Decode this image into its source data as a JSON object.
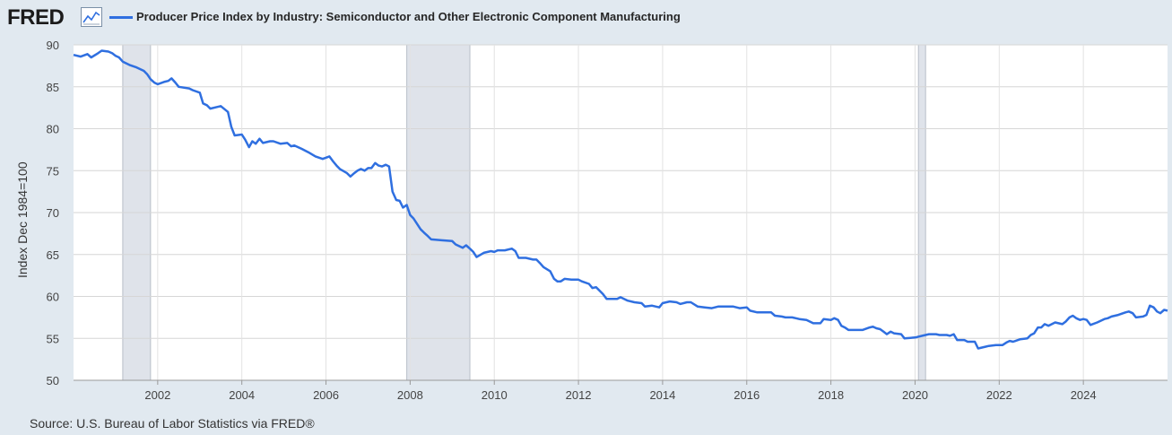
{
  "logo": {
    "text": "FRED",
    "icon": "line-chart-icon"
  },
  "legend": {
    "label": "Producer Price Index by Industry: Semiconductor and Other Electronic Component Manufacturing",
    "color": "#2f6fe0"
  },
  "source": "Source: U.S. Bureau of Labor Statistics via FRED®",
  "chart_data": {
    "type": "line",
    "title": "",
    "ylabel": "Index Dec 1984=100",
    "xlabel": "",
    "xlim": [
      2000.0,
      2025.25
    ],
    "ylim": [
      50,
      90
    ],
    "yticks": [
      50,
      55,
      60,
      65,
      70,
      75,
      80,
      85,
      90
    ],
    "xticks": [
      2002,
      2004,
      2006,
      2008,
      2010,
      2012,
      2014,
      2016,
      2018,
      2020,
      2022,
      2024
    ],
    "grid": true,
    "recessions": [
      [
        2001.17,
        2001.83
      ],
      [
        2007.92,
        2009.42
      ],
      [
        2020.08,
        2020.25
      ]
    ],
    "series": [
      {
        "values": [
          [
            2000.0,
            88.8
          ],
          [
            2000.17,
            88.6
          ],
          [
            2000.33,
            88.9
          ],
          [
            2000.42,
            88.5
          ],
          [
            2000.58,
            89.0
          ],
          [
            2000.67,
            89.3
          ],
          [
            2000.83,
            89.2
          ],
          [
            2000.92,
            89.0
          ],
          [
            2001.0,
            88.7
          ],
          [
            2001.08,
            88.5
          ],
          [
            2001.17,
            88.0
          ],
          [
            2001.33,
            87.6
          ],
          [
            2001.5,
            87.3
          ],
          [
            2001.67,
            86.9
          ],
          [
            2001.75,
            86.5
          ],
          [
            2001.83,
            85.9
          ],
          [
            2001.92,
            85.5
          ],
          [
            2002.0,
            85.3
          ],
          [
            2002.17,
            85.6
          ],
          [
            2002.25,
            85.7
          ],
          [
            2002.33,
            86.0
          ],
          [
            2002.42,
            85.5
          ],
          [
            2002.5,
            85.0
          ],
          [
            2002.75,
            84.8
          ],
          [
            2002.83,
            84.6
          ],
          [
            2003.0,
            84.3
          ],
          [
            2003.08,
            83.0
          ],
          [
            2003.17,
            82.8
          ],
          [
            2003.25,
            82.4
          ],
          [
            2003.42,
            82.6
          ],
          [
            2003.5,
            82.7
          ],
          [
            2003.67,
            82.0
          ],
          [
            2003.75,
            80.2
          ],
          [
            2003.83,
            79.2
          ],
          [
            2004.0,
            79.3
          ],
          [
            2004.08,
            78.7
          ],
          [
            2004.17,
            77.8
          ],
          [
            2004.25,
            78.5
          ],
          [
            2004.33,
            78.2
          ],
          [
            2004.42,
            78.8
          ],
          [
            2004.5,
            78.3
          ],
          [
            2004.67,
            78.5
          ],
          [
            2004.75,
            78.5
          ],
          [
            2004.92,
            78.2
          ],
          [
            2005.08,
            78.3
          ],
          [
            2005.17,
            77.9
          ],
          [
            2005.25,
            78.0
          ],
          [
            2005.42,
            77.6
          ],
          [
            2005.58,
            77.2
          ],
          [
            2005.75,
            76.7
          ],
          [
            2005.92,
            76.4
          ],
          [
            2006.08,
            76.7
          ],
          [
            2006.17,
            76.1
          ],
          [
            2006.25,
            75.6
          ],
          [
            2006.33,
            75.2
          ],
          [
            2006.5,
            74.7
          ],
          [
            2006.58,
            74.3
          ],
          [
            2006.67,
            74.7
          ],
          [
            2006.75,
            75.0
          ],
          [
            2006.83,
            75.2
          ],
          [
            2006.92,
            75.0
          ],
          [
            2007.0,
            75.3
          ],
          [
            2007.08,
            75.3
          ],
          [
            2007.17,
            75.9
          ],
          [
            2007.25,
            75.6
          ],
          [
            2007.33,
            75.5
          ],
          [
            2007.42,
            75.7
          ],
          [
            2007.5,
            75.5
          ],
          [
            2007.58,
            72.5
          ],
          [
            2007.67,
            71.5
          ],
          [
            2007.75,
            71.4
          ],
          [
            2007.83,
            70.6
          ],
          [
            2007.92,
            70.9
          ],
          [
            2008.0,
            69.7
          ],
          [
            2008.08,
            69.3
          ],
          [
            2008.17,
            68.6
          ],
          [
            2008.25,
            68.0
          ],
          [
            2008.33,
            67.6
          ],
          [
            2008.42,
            67.2
          ],
          [
            2008.5,
            66.8
          ],
          [
            2008.75,
            66.7
          ],
          [
            2009.0,
            66.6
          ],
          [
            2009.08,
            66.2
          ],
          [
            2009.25,
            65.8
          ],
          [
            2009.33,
            66.1
          ],
          [
            2009.42,
            65.7
          ],
          [
            2009.5,
            65.3
          ],
          [
            2009.58,
            64.7
          ],
          [
            2009.75,
            65.2
          ],
          [
            2009.92,
            65.4
          ],
          [
            2010.0,
            65.3
          ],
          [
            2010.08,
            65.5
          ],
          [
            2010.25,
            65.5
          ],
          [
            2010.42,
            65.7
          ],
          [
            2010.5,
            65.4
          ],
          [
            2010.58,
            64.6
          ],
          [
            2010.67,
            64.6
          ],
          [
            2010.75,
            64.6
          ],
          [
            2010.92,
            64.4
          ],
          [
            2011.0,
            64.4
          ],
          [
            2011.08,
            64.0
          ],
          [
            2011.17,
            63.5
          ],
          [
            2011.33,
            63.0
          ],
          [
            2011.42,
            62.1
          ],
          [
            2011.5,
            61.8
          ],
          [
            2011.58,
            61.8
          ],
          [
            2011.67,
            62.1
          ],
          [
            2011.83,
            62.0
          ],
          [
            2012.0,
            62.0
          ],
          [
            2012.08,
            61.8
          ],
          [
            2012.25,
            61.5
          ],
          [
            2012.33,
            61.0
          ],
          [
            2012.42,
            61.1
          ],
          [
            2012.58,
            60.3
          ],
          [
            2012.67,
            59.7
          ],
          [
            2012.92,
            59.7
          ],
          [
            2013.0,
            59.9
          ],
          [
            2013.17,
            59.5
          ],
          [
            2013.33,
            59.3
          ],
          [
            2013.5,
            59.2
          ],
          [
            2013.58,
            58.8
          ],
          [
            2013.75,
            58.9
          ],
          [
            2013.92,
            58.7
          ],
          [
            2014.0,
            59.2
          ],
          [
            2014.17,
            59.4
          ],
          [
            2014.33,
            59.3
          ],
          [
            2014.42,
            59.1
          ],
          [
            2014.58,
            59.3
          ],
          [
            2014.67,
            59.3
          ],
          [
            2014.83,
            58.8
          ],
          [
            2015.0,
            58.7
          ],
          [
            2015.17,
            58.6
          ],
          [
            2015.33,
            58.8
          ],
          [
            2015.5,
            58.8
          ],
          [
            2015.67,
            58.8
          ],
          [
            2015.83,
            58.6
          ],
          [
            2016.0,
            58.7
          ],
          [
            2016.08,
            58.3
          ],
          [
            2016.25,
            58.1
          ],
          [
            2016.42,
            58.1
          ],
          [
            2016.58,
            58.1
          ],
          [
            2016.67,
            57.7
          ],
          [
            2016.83,
            57.6
          ],
          [
            2016.92,
            57.5
          ],
          [
            2017.08,
            57.5
          ],
          [
            2017.25,
            57.3
          ],
          [
            2017.42,
            57.2
          ],
          [
            2017.58,
            56.8
          ],
          [
            2017.75,
            56.8
          ],
          [
            2017.83,
            57.3
          ],
          [
            2018.0,
            57.2
          ],
          [
            2018.08,
            57.4
          ],
          [
            2018.17,
            57.2
          ],
          [
            2018.25,
            56.5
          ],
          [
            2018.33,
            56.3
          ],
          [
            2018.42,
            56.0
          ],
          [
            2018.58,
            56.0
          ],
          [
            2018.75,
            56.0
          ],
          [
            2018.92,
            56.3
          ],
          [
            2019.0,
            56.4
          ],
          [
            2019.08,
            56.2
          ],
          [
            2019.17,
            56.1
          ],
          [
            2019.25,
            55.8
          ],
          [
            2019.33,
            55.5
          ],
          [
            2019.42,
            55.8
          ],
          [
            2019.5,
            55.6
          ],
          [
            2019.67,
            55.5
          ],
          [
            2019.75,
            55.0
          ],
          [
            2020.0,
            55.1
          ],
          [
            2020.17,
            55.3
          ],
          [
            2020.33,
            55.5
          ],
          [
            2020.5,
            55.5
          ],
          [
            2020.58,
            55.4
          ],
          [
            2020.75,
            55.4
          ],
          [
            2020.83,
            55.3
          ],
          [
            2020.92,
            55.5
          ],
          [
            2021.0,
            54.8
          ],
          [
            2021.17,
            54.8
          ],
          [
            2021.25,
            54.6
          ],
          [
            2021.42,
            54.6
          ],
          [
            2021.5,
            53.8
          ],
          [
            2021.67,
            54.0
          ],
          [
            2021.75,
            54.1
          ],
          [
            2021.92,
            54.2
          ],
          [
            2022.08,
            54.2
          ],
          [
            2022.17,
            54.5
          ],
          [
            2022.25,
            54.7
          ],
          [
            2022.33,
            54.6
          ],
          [
            2022.5,
            54.9
          ],
          [
            2022.67,
            55.0
          ],
          [
            2022.75,
            55.4
          ],
          [
            2022.83,
            55.6
          ],
          [
            2022.92,
            56.3
          ],
          [
            2023.0,
            56.3
          ],
          [
            2023.08,
            56.7
          ],
          [
            2023.17,
            56.5
          ],
          [
            2023.33,
            56.9
          ],
          [
            2023.5,
            56.7
          ],
          [
            2023.58,
            57.0
          ],
          [
            2023.67,
            57.5
          ],
          [
            2023.75,
            57.7
          ],
          [
            2023.83,
            57.4
          ],
          [
            2023.92,
            57.2
          ],
          [
            2024.0,
            57.3
          ],
          [
            2024.08,
            57.2
          ],
          [
            2024.17,
            56.6
          ],
          [
            2024.33,
            56.9
          ],
          [
            2024.5,
            57.3
          ],
          [
            2024.58,
            57.4
          ],
          [
            2024.67,
            57.6
          ],
          [
            2024.83,
            57.8
          ],
          [
            2025.0,
            58.1
          ],
          [
            2025.08,
            58.2
          ],
          [
            2025.17,
            58.0
          ],
          [
            2025.25,
            57.5
          ],
          [
            2025.42,
            57.6
          ],
          [
            2025.5,
            57.8
          ],
          [
            2025.58,
            58.9
          ],
          [
            2025.67,
            58.7
          ],
          [
            2025.75,
            58.2
          ],
          [
            2025.83,
            58.0
          ],
          [
            2025.92,
            58.4
          ],
          [
            2026.0,
            58.3
          ]
        ]
      }
    ]
  }
}
